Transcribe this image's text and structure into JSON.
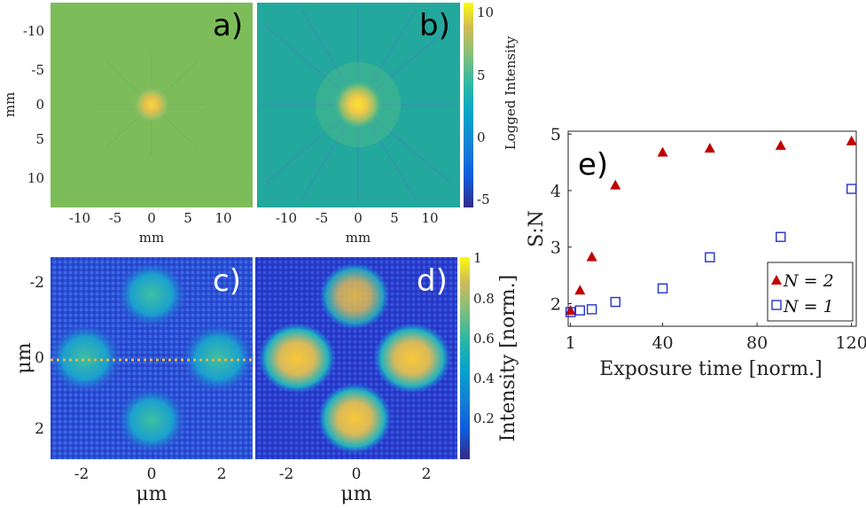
{
  "colors": {
    "n2_marker": "#c00000",
    "n1_marker": "#2233cc"
  },
  "panels": {
    "a": {
      "label": "a)",
      "xlabel": "mm",
      "ylabel": "mm",
      "xticks": [
        "-10",
        "-5",
        "0",
        "5",
        "10"
      ],
      "yticks": [
        "-10",
        "-5",
        "0",
        "5",
        "10"
      ]
    },
    "b": {
      "label": "b)",
      "xlabel": "mm",
      "xticks": [
        "-10",
        "-5",
        "0",
        "5",
        "10"
      ]
    },
    "ab_colorbar": {
      "label": "Logged Intensity",
      "ticks": [
        "10",
        "5",
        "0",
        "-5"
      ]
    },
    "c": {
      "label": "c)",
      "xlabel": "μm",
      "ylabel": "μm",
      "xticks": [
        "-2",
        "0",
        "2"
      ],
      "yticks": [
        "-2",
        "0",
        "2"
      ]
    },
    "d": {
      "label": "d)",
      "xlabel": "μm",
      "xticks": [
        "-2",
        "0",
        "2"
      ]
    },
    "cd_colorbar": {
      "label": "Intensity [norm.]",
      "ticks": [
        "1",
        "0.8",
        "0.6",
        "0.4",
        "0.2"
      ]
    },
    "e": {
      "label": "e)"
    }
  },
  "chart_data": {
    "type": "scatter",
    "xlabel": "Exposure time [norm.]",
    "ylabel": "S:N",
    "xlim": [
      0,
      122
    ],
    "ylim": [
      1.6,
      5.05
    ],
    "xticks": [
      "1",
      "40",
      "80",
      "120"
    ],
    "yticks": [
      "2",
      "3",
      "4",
      "5"
    ],
    "legend_position": "bottom-right",
    "series": [
      {
        "name": "N = 2",
        "marker": "filled-triangle",
        "x": [
          1,
          5,
          10,
          20,
          40,
          60,
          90,
          120
        ],
        "y": [
          1.88,
          2.24,
          2.83,
          4.1,
          4.68,
          4.75,
          4.8,
          4.88
        ]
      },
      {
        "name": "N = 1",
        "marker": "open-square",
        "x": [
          1,
          5,
          10,
          20,
          40,
          60,
          90,
          120
        ],
        "y": [
          1.85,
          1.88,
          1.9,
          2.03,
          2.27,
          2.82,
          3.18,
          4.03
        ]
      }
    ]
  }
}
